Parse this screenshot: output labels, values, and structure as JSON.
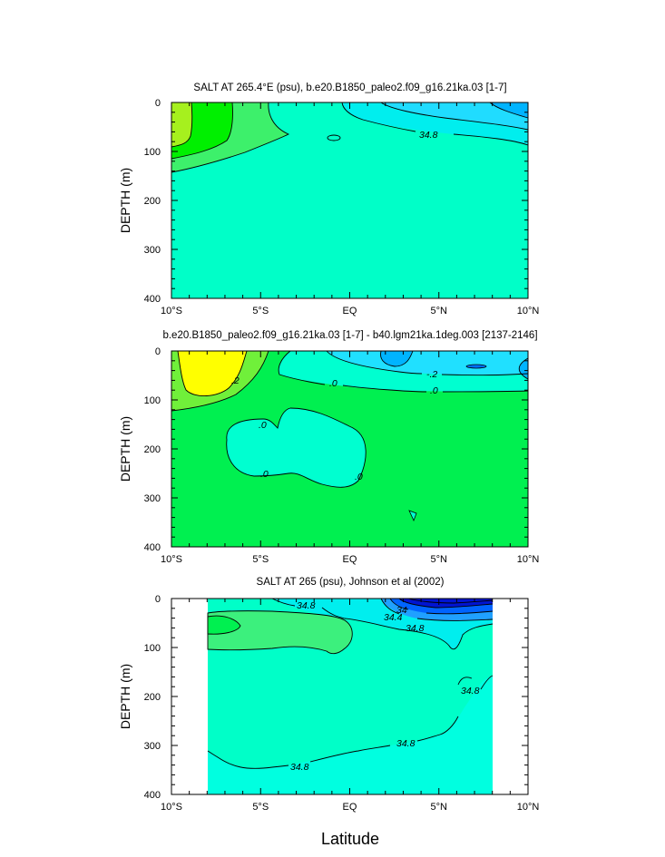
{
  "chart_data": [
    {
      "type": "contour",
      "title": "SALT AT 265.4°E (psu), b.e20.B1850_paleo2.f09_g16.21ka.03 [1-7]",
      "ylabel": "DEPTH (m)",
      "xlabel": "",
      "xlim": [
        -10,
        10
      ],
      "ylim": [
        400,
        0
      ],
      "xticks": [
        "10°S",
        "5°S",
        "EQ",
        "5°N",
        "10°N"
      ],
      "yticks": [
        "0",
        "100",
        "200",
        "300",
        "400"
      ],
      "contour_labels": [
        "34.8"
      ],
      "fill_colors": [
        "#a6f01e",
        "#00f000",
        "#3df06b",
        "#00ffc8",
        "#00eeee",
        "#20dcff",
        "#00b4ff"
      ]
    },
    {
      "type": "contour",
      "title": "b.e20.B1850_paleo2.f09_g16.21ka.03 [1-7] - b40.lgm21ka.1deg.003 [2137-2146]",
      "ylabel": "DEPTH (m)",
      "xlabel": "",
      "xlim": [
        -10,
        10
      ],
      "ylim": [
        400,
        0
      ],
      "xticks": [
        "10°S",
        "5°S",
        "EQ",
        "5°N",
        "10°N"
      ],
      "yticks": [
        "0",
        "100",
        "200",
        "300",
        "400"
      ],
      "contour_labels": [
        ".2",
        ".0",
        "-.2",
        ".0",
        ".0",
        ".0",
        ".0"
      ],
      "fill_colors": [
        "#ffff00",
        "#70f03a",
        "#00f050",
        "#00ffd0",
        "#20e0ff",
        "#00b4ff"
      ]
    },
    {
      "type": "contour",
      "title": "SALT AT 265 (psu), Johnson et al (2002)",
      "ylabel": "DEPTH (m)",
      "xlabel": "Latitude",
      "xlim": [
        -10,
        10
      ],
      "ylim": [
        400,
        0
      ],
      "xticks": [
        "10°S",
        "5°S",
        "EQ",
        "5°N",
        "10°N"
      ],
      "yticks": [
        "0",
        "100",
        "200",
        "300",
        "400"
      ],
      "contour_labels": [
        "34.8",
        "34",
        "34.4",
        "34.8",
        "34.8",
        "34.8",
        "34.8"
      ],
      "fill_colors": [
        "#00f050",
        "#3cf07d",
        "#00ffc8",
        "#00ffe0",
        "#00eeee",
        "#0064ff",
        "#0014d2"
      ]
    }
  ]
}
